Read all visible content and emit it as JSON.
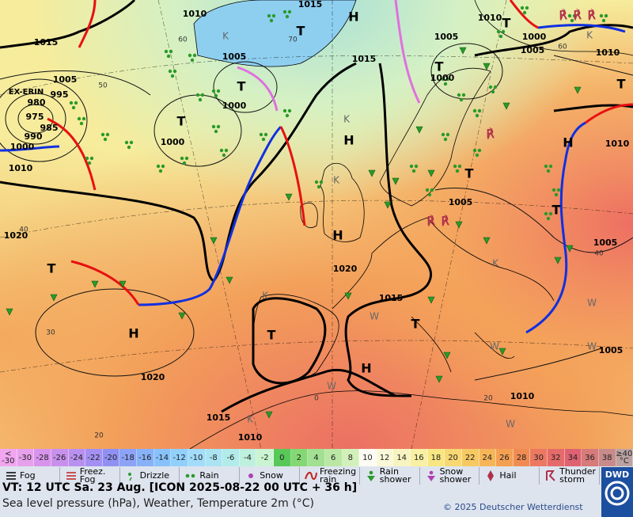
{
  "map": {
    "pressure_centers": [
      "EX-ERIN",
      "T",
      "T",
      "T",
      "H",
      "H",
      "H",
      "T",
      "T",
      "H",
      "T",
      "T",
      "T",
      "H",
      "T",
      "H",
      "T",
      "T"
    ],
    "isobar_labels": [
      "1010",
      "1015",
      "1015",
      "1005",
      "995",
      "980",
      "975",
      "985",
      "990",
      "1000",
      "1010",
      "1020",
      "1000",
      "1005",
      "1000",
      "1015",
      "1005",
      "1000",
      "1010",
      "1000",
      "1005",
      "1010",
      "1010",
      "1005",
      "1005",
      "1020",
      "1015",
      "1020",
      "1015",
      "1010",
      "1010",
      "1005"
    ],
    "grid_labels": [
      "60",
      "50",
      "40",
      "30",
      "20",
      "0",
      "20",
      "40",
      "60",
      "70"
    ],
    "air_mass_labels": [
      "K",
      "K",
      "K",
      "K",
      "K",
      "K",
      "K",
      "W",
      "W",
      "W",
      "W",
      "W",
      "W"
    ]
  },
  "temperature_scale": [
    {
      "label": "< -30",
      "color": "#f2a6f0"
    },
    {
      "label": "-30",
      "color": "#e6a0ec"
    },
    {
      "label": "-28",
      "color": "#d894ec"
    },
    {
      "label": "-26",
      "color": "#c890ec"
    },
    {
      "label": "-24",
      "color": "#b890f0"
    },
    {
      "label": "-22",
      "color": "#a490f2"
    },
    {
      "label": "-20",
      "color": "#9090f2"
    },
    {
      "label": "-18",
      "color": "#8ca2f6"
    },
    {
      "label": "-16",
      "color": "#88b2f8"
    },
    {
      "label": "-14",
      "color": "#88c2fc"
    },
    {
      "label": "-12",
      "color": "#92d0fc"
    },
    {
      "label": "-10",
      "color": "#a2dcfa"
    },
    {
      "label": "-8",
      "color": "#aae4f2"
    },
    {
      "label": "-6",
      "color": "#b2ecea"
    },
    {
      "label": "-4",
      "color": "#bef0de"
    },
    {
      "label": "-2",
      "color": "#caf4d2"
    },
    {
      "label": "0",
      "color": "#58c858"
    },
    {
      "label": "2",
      "color": "#84d874"
    },
    {
      "label": "4",
      "color": "#a2e092"
    },
    {
      "label": "6",
      "color": "#bae8a4"
    },
    {
      "label": "8",
      "color": "#d2f0ba"
    },
    {
      "label": "10",
      "color": "#fcfcf4"
    },
    {
      "label": "12",
      "color": "#fbf8d8"
    },
    {
      "label": "14",
      "color": "#f8f4c0"
    },
    {
      "label": "16",
      "color": "#f8f0a2"
    },
    {
      "label": "18",
      "color": "#f8e682"
    },
    {
      "label": "20",
      "color": "#f8d872"
    },
    {
      "label": "22",
      "color": "#f8c862"
    },
    {
      "label": "24",
      "color": "#f6b658"
    },
    {
      "label": "26",
      "color": "#f4a052"
    },
    {
      "label": "28",
      "color": "#f08c52"
    },
    {
      "label": "30",
      "color": "#ec7862"
    },
    {
      "label": "32",
      "color": "#e66a6a"
    },
    {
      "label": "34",
      "color": "#de6272"
    },
    {
      "label": "36",
      "color": "#d67a7a"
    },
    {
      "label": "38",
      "color": "#c88a8a"
    },
    {
      "label": "≥40 °C",
      "color": "#bca2a2"
    }
  ],
  "weather_legend": [
    "Fog",
    "Freez. Fog",
    "Drizzle",
    "Rain",
    "Snow",
    "Freezing rain",
    "Rain shower",
    "Snow shower",
    "Hail",
    "Thunder storm"
  ],
  "footer": {
    "valid_time": "VT: 12 UTC Sa.  23 Aug. [ICON 2025-08-22  00 UTC + 36 h]",
    "description": "Sea level pressure (hPa), Weather, Temperature 2m (°C)",
    "copyright": "© 2025 Deutscher Wetterdienst",
    "logo": "DWD"
  }
}
